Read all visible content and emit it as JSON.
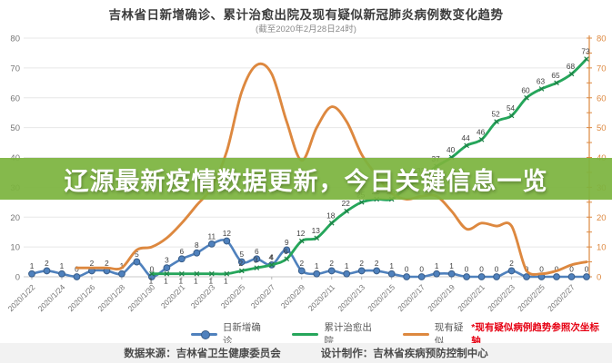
{
  "banner": {
    "text": "辽源最新疫情数据更新，今日关键信息一览",
    "bg_color": "#7cb43e",
    "text_color": "#ffffff"
  },
  "legend": {
    "note_color": "#e60012"
  },
  "footer": {
    "source": "数据来源：吉林省卫生健康委员会",
    "credit": "设计制作：吉林省疾病预防控制中心"
  },
  "chart_data": {
    "type": "line",
    "title": "吉林省日新增确诊、累计治愈出院及现有疑似新冠肺炎病例数变化趋势",
    "subtitle": "(截至2020年2月28日24时)",
    "annotation": "*现有疑似病例趋势参照次坐标轴",
    "grid": true,
    "legend_position": "bottom",
    "ylim_left": [
      0,
      80
    ],
    "ylim_right": [
      0,
      80
    ],
    "y_tick_step": 10,
    "axis_text_color": "#767676",
    "right_axis_color": "#dd883f",
    "x": [
      "2020/1/22",
      "2020/1/23",
      "2020/1/24",
      "2020/1/25",
      "2020/1/26",
      "2020/1/27",
      "2020/1/28",
      "2020/1/29",
      "2020/1/30",
      "2020/1/31",
      "2020/2/1",
      "2020/2/2",
      "2020/2/3",
      "2020/2/4",
      "2020/2/5",
      "2020/2/6",
      "2020/2/7",
      "2020/2/8",
      "2020/2/9",
      "2020/2/10",
      "2020/2/11",
      "2020/2/12",
      "2020/2/13",
      "2020/2/14",
      "2020/2/15",
      "2020/2/16",
      "2020/2/17",
      "2020/2/18",
      "2020/2/19",
      "2020/2/20",
      "2020/2/21",
      "2020/2/22",
      "2020/2/23",
      "2020/2/24",
      "2020/2/25",
      "2020/2/26",
      "2020/2/27",
      "2020/2/28"
    ],
    "x_tick_labels": [
      "2020/1/22",
      "2020/1/24",
      "2020/1/26",
      "2020/1/28",
      "2020/1/30",
      "2020/2/1",
      "2020/2/3",
      "2020/2/5",
      "2020/2/7",
      "2020/2/9",
      "2020/2/11",
      "2020/2/13",
      "2020/2/15",
      "2020/2/17",
      "2020/2/19",
      "2020/2/21",
      "2020/2/23",
      "2020/2/25",
      "2020/2/27"
    ],
    "series": [
      {
        "name": "日新增确诊",
        "axis": "left",
        "color": "#4f81bd",
        "marker": "circle",
        "smooth": true,
        "show_labels": true,
        "values": [
          1,
          2,
          1,
          0,
          2,
          2,
          1,
          5,
          0,
          3,
          6,
          8,
          11,
          12,
          5,
          6,
          4,
          9,
          2,
          1,
          2,
          1,
          2,
          2,
          1,
          0,
          0,
          1,
          1,
          0,
          0,
          0,
          2,
          0,
          0,
          0,
          0,
          0
        ]
      },
      {
        "name": "累计治愈出院",
        "axis": "left",
        "color": "#26a65b",
        "marker": "x",
        "smooth": true,
        "show_labels": true,
        "values": [
          null,
          null,
          null,
          null,
          null,
          null,
          null,
          null,
          1,
          1,
          1,
          1,
          1,
          1,
          2,
          3,
          4,
          6,
          12,
          13,
          18,
          22,
          25,
          26,
          26,
          30,
          33,
          37,
          40,
          44,
          46,
          52,
          54,
          60,
          63,
          65,
          68,
          73
        ]
      },
      {
        "name": "现有疑似",
        "axis": "right",
        "color": "#dd883f",
        "marker": "none",
        "smooth": true,
        "show_labels": false,
        "values": [
          null,
          null,
          null,
          3,
          3,
          3,
          3,
          9,
          10,
          13,
          18,
          24,
          30,
          42,
          62,
          71,
          68,
          52,
          39,
          50,
          57,
          52,
          41,
          34,
          28,
          26,
          27,
          27,
          22,
          16,
          18,
          17,
          17,
          2,
          1,
          2,
          4,
          5
        ]
      }
    ]
  }
}
